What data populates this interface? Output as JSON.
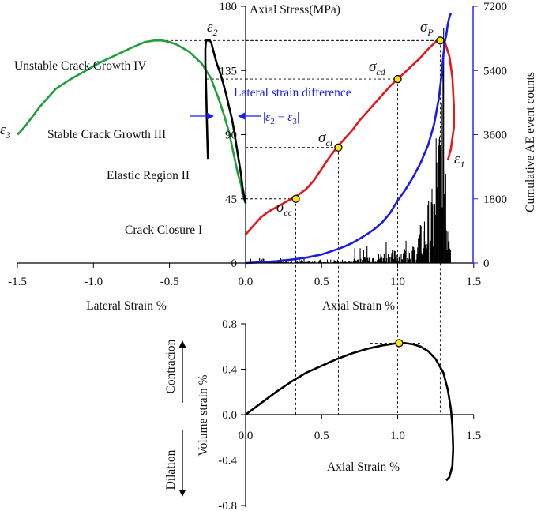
{
  "chart_data": [
    {
      "type": "line",
      "left_axis": {
        "label": "Axial Stress(MPa)",
        "range": [
          0,
          180
        ],
        "ticks": [
          0,
          45,
          90,
          135,
          180
        ]
      },
      "right_axis": {
        "label": "Cumulative AE event counts",
        "range": [
          0,
          7200
        ],
        "ticks": [
          0,
          1800,
          3600,
          5400,
          7200
        ]
      },
      "x_axis_left": {
        "label": "Lateral Strain %",
        "ticks": [
          "-1.5",
          "-1.0",
          "-0.5",
          "0.0"
        ],
        "range": [
          -1.5,
          0
        ]
      },
      "x_axis_right": {
        "label": "Axial Strain %",
        "ticks": [
          "0.5",
          "1.0",
          "1.5"
        ],
        "range": [
          0,
          1.5
        ]
      },
      "tick_labels": {
        "x": [
          "-1.5",
          "-1.0",
          "-0.5",
          "0.0",
          "0.5",
          "1.0",
          "1.5"
        ],
        "y_left": [
          "0",
          "45",
          "90",
          "135",
          "180"
        ],
        "y_right": [
          "0",
          "1800",
          "3600",
          "5400",
          "7200"
        ]
      },
      "series": [
        {
          "color": "#e8161b",
          "points": [
            [
              0,
              20
            ],
            [
              0.05,
              26
            ],
            [
              0.1,
              32
            ],
            [
              0.15,
              36
            ],
            [
              0.2,
              39
            ],
            [
              0.25,
              42
            ],
            [
              0.3,
              45
            ],
            [
              0.35,
              48
            ],
            [
              0.4,
              52
            ],
            [
              0.45,
              58
            ],
            [
              0.5,
              66
            ],
            [
              0.55,
              74
            ],
            [
              0.6,
              81
            ],
            [
              0.65,
              87
            ],
            [
              0.7,
              93
            ],
            [
              0.75,
              100
            ],
            [
              0.8,
              106
            ],
            [
              0.85,
              112
            ],
            [
              0.9,
              118
            ],
            [
              0.95,
              124
            ],
            [
              1.0,
              129
            ],
            [
              1.05,
              134
            ],
            [
              1.1,
              139
            ],
            [
              1.15,
              144
            ],
            [
              1.2,
              150
            ],
            [
              1.25,
              155
            ],
            [
              1.28,
              156
            ],
            [
              1.31,
              155
            ],
            [
              1.34,
              145
            ],
            [
              1.36,
              130
            ],
            [
              1.37,
              110
            ],
            [
              1.37,
              95
            ],
            [
              1.35,
              80
            ],
            [
              1.33,
              72
            ]
          ]
        },
        {
          "color": "#1f9e3a",
          "points": [
            [
              0,
              42
            ],
            [
              -0.02,
              48
            ],
            [
              -0.03,
              55
            ],
            [
              -0.05,
              62
            ],
            [
              -0.07,
              72
            ],
            [
              -0.09,
              82
            ],
            [
              -0.11,
              92
            ],
            [
              -0.14,
              103
            ],
            [
              -0.18,
              116
            ],
            [
              -0.23,
              130
            ],
            [
              -0.29,
              140
            ],
            [
              -0.37,
              148
            ],
            [
              -0.45,
              153
            ],
            [
              -0.5,
              155
            ],
            [
              -0.55,
              156
            ],
            [
              -0.6,
              156
            ],
            [
              -0.66,
              155
            ],
            [
              -0.75,
              151
            ],
            [
              -0.85,
              146
            ],
            [
              -0.95,
              141
            ],
            [
              -1.05,
              135
            ],
            [
              -1.15,
              129
            ],
            [
              -1.25,
              122
            ],
            [
              -1.35,
              110
            ],
            [
              -1.45,
              96
            ],
            [
              -1.5,
              90
            ]
          ]
        },
        {
          "color": "#000000",
          "points": [
            [
              0,
              42
            ],
            [
              -0.01,
              47
            ],
            [
              -0.02,
              53
            ],
            [
              -0.03,
              62
            ],
            [
              -0.045,
              72
            ],
            [
              -0.06,
              82
            ],
            [
              -0.075,
              92
            ],
            [
              -0.09,
              101
            ],
            [
              -0.11,
              110
            ],
            [
              -0.13,
              119
            ],
            [
              -0.15,
              127
            ],
            [
              -0.17,
              134
            ],
            [
              -0.19,
              140
            ],
            [
              -0.205,
              146
            ],
            [
              -0.215,
              150
            ],
            [
              -0.225,
              154
            ],
            [
              -0.235,
              156
            ],
            [
              -0.26,
              156
            ],
            [
              -0.265,
              150
            ],
            [
              -0.265,
              140
            ],
            [
              -0.262,
              130
            ],
            [
              -0.258,
              115
            ],
            [
              -0.255,
              100
            ],
            [
              -0.252,
              88
            ],
            [
              -0.25,
              80
            ],
            [
              -0.248,
              73
            ]
          ]
        },
        {
          "color": "#1b1be8",
          "points": [
            [
              0,
              0
            ],
            [
              0.1,
              20
            ],
            [
              0.2,
              50
            ],
            [
              0.3,
              95
            ],
            [
              0.4,
              150
            ],
            [
              0.5,
              240
            ],
            [
              0.6,
              380
            ],
            [
              0.65,
              460
            ],
            [
              0.7,
              560
            ],
            [
              0.75,
              680
            ],
            [
              0.8,
              810
            ],
            [
              0.85,
              960
            ],
            [
              0.9,
              1150
            ],
            [
              0.95,
              1400
            ],
            [
              1.0,
              1750
            ],
            [
              1.05,
              2050
            ],
            [
              1.1,
              2400
            ],
            [
              1.15,
              2800
            ],
            [
              1.2,
              3300
            ],
            [
              1.24,
              3900
            ],
            [
              1.27,
              4600
            ],
            [
              1.29,
              5300
            ],
            [
              1.3,
              5800
            ],
            [
              1.31,
              6200
            ],
            [
              1.32,
              6400
            ],
            [
              1.33,
              6700
            ],
            [
              1.34,
              6900
            ],
            [
              1.35,
              7000
            ]
          ]
        }
      ],
      "thresholds": [
        {
          "symbol": "σ",
          "subscript": "cc",
          "strain": 0.33,
          "stress": 45
        },
        {
          "symbol": "σ",
          "subscript": "ci",
          "strain": 0.61,
          "stress": 81
        },
        {
          "symbol": "σ",
          "subscript": "cd",
          "strain": 1.0,
          "stress": 129
        },
        {
          "symbol": "σ",
          "subscript": "P",
          "strain": 1.28,
          "stress": 156
        }
      ],
      "annotations": {
        "regions": [
          "Unstable Crack Growth IV",
          "Stable Crack Growth III",
          "Elastic Region II",
          "Crack Closure I"
        ],
        "lateral_strain_difference": "Lateral strain difference",
        "difference_formula": {
          "bar": "|",
          "e1": "ε",
          "s2": "2",
          "minus": " − ",
          "s3": "3"
        },
        "epsilon_labels": [
          {
            "symbol": "ε",
            "subscript": "3"
          },
          {
            "symbol": "ε",
            "subscript": "2"
          },
          {
            "symbol": "ε",
            "subscript": "1"
          }
        ]
      }
    },
    {
      "type": "line",
      "x_axis": {
        "label": "Axial Strain %",
        "ticks": [
          "0.0",
          "0.5",
          "1.0",
          "1.5"
        ],
        "range": [
          0,
          1.5
        ]
      },
      "y_axis": {
        "label": "Volume strain %",
        "range": [
          -0.8,
          0.8
        ],
        "ticks": [
          "0.8",
          "0.4",
          "0.0",
          "-0.4",
          "-0.8"
        ]
      },
      "side_labels": {
        "contraction": "Contracion",
        "dilation": "Dilation"
      },
      "series": [
        {
          "color": "#000000",
          "points": [
            [
              0,
              0
            ],
            [
              0.05,
              0.05
            ],
            [
              0.1,
              0.1
            ],
            [
              0.2,
              0.2
            ],
            [
              0.3,
              0.29
            ],
            [
              0.4,
              0.37
            ],
            [
              0.5,
              0.43
            ],
            [
              0.6,
              0.49
            ],
            [
              0.7,
              0.54
            ],
            [
              0.8,
              0.58
            ],
            [
              0.9,
              0.61
            ],
            [
              1.0,
              0.63
            ],
            [
              1.05,
              0.63
            ],
            [
              1.1,
              0.62
            ],
            [
              1.15,
              0.6
            ],
            [
              1.2,
              0.56
            ],
            [
              1.25,
              0.49
            ],
            [
              1.3,
              0.37
            ],
            [
              1.33,
              0.22
            ],
            [
              1.35,
              0.05
            ],
            [
              1.36,
              -0.1
            ],
            [
              1.365,
              -0.3
            ],
            [
              1.36,
              -0.45
            ],
            [
              1.34,
              -0.55
            ],
            [
              1.32,
              -0.58
            ]
          ]
        }
      ],
      "peak": {
        "strain": 1.01,
        "volume": 0.63
      }
    }
  ]
}
